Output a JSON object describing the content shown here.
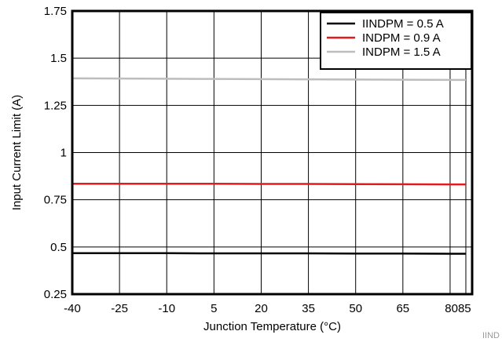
{
  "chart_data": {
    "type": "line",
    "xlabel": "Junction Temperature (°C)",
    "ylabel": "Input Current Limit (A)",
    "xlim": [
      -40,
      87
    ],
    "ylim": [
      0.25,
      1.75
    ],
    "x_ticks": [
      -40,
      -25,
      -10,
      5,
      20,
      35,
      50,
      65,
      80,
      85
    ],
    "x_tick_labels": [
      "-40",
      "-25",
      "-10",
      "5",
      "20",
      "35",
      "50",
      "65",
      "80",
      "85"
    ],
    "y_ticks": [
      0.25,
      0.5,
      0.75,
      1,
      1.25,
      1.5,
      1.75
    ],
    "y_tick_labels": [
      "0.25",
      "0.5",
      "0.75",
      "1",
      "1.25",
      "1.5",
      "1.75"
    ],
    "grid": true,
    "legend_position": "top-right",
    "series": [
      {
        "name": "IINDPM = 0.5 A",
        "color": "#000000",
        "x": [
          -40,
          -25,
          -10,
          5,
          20,
          35,
          50,
          65,
          80,
          85
        ],
        "y": [
          0.467,
          0.467,
          0.467,
          0.466,
          0.466,
          0.466,
          0.465,
          0.465,
          0.464,
          0.464
        ]
      },
      {
        "name": "INDPM = 0.9 A",
        "color": "#e31a1c",
        "x": [
          -40,
          -25,
          -10,
          5,
          20,
          35,
          50,
          65,
          80,
          85
        ],
        "y": [
          0.835,
          0.835,
          0.835,
          0.835,
          0.834,
          0.834,
          0.833,
          0.832,
          0.831,
          0.831
        ]
      },
      {
        "name": "INDPM = 1.5 A",
        "color": "#bdbdbd",
        "x": [
          -40,
          -25,
          -10,
          5,
          20,
          35,
          50,
          65,
          80,
          85
        ],
        "y": [
          1.393,
          1.392,
          1.391,
          1.39,
          1.389,
          1.388,
          1.387,
          1.386,
          1.385,
          1.385
        ]
      }
    ]
  },
  "corner_tag": "IIND"
}
